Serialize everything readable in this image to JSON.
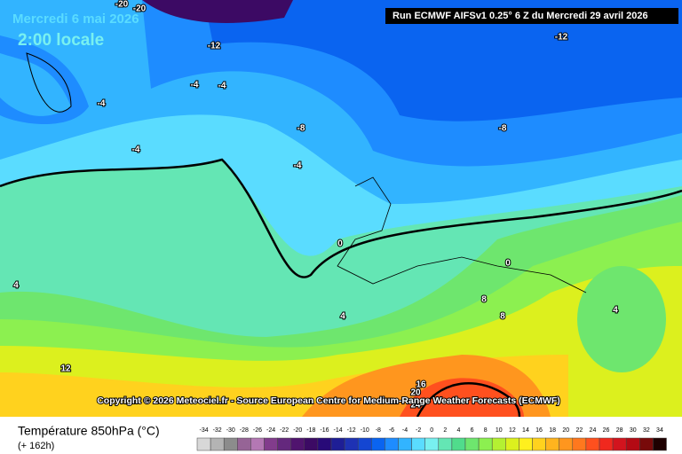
{
  "header": {
    "date": "Mercredi 6 mai 2026",
    "time": "2:00 locale",
    "run": "Run ECMWF AIFSv1 0.25° 6 Z du Mercredi 29 avril 2026"
  },
  "copyright": "Copyright © 2026 Meteociel.fr - Source European Centre for Medium-Range Weather Forecasts (ECMWF)",
  "legend": {
    "title": "Température 850hPa (°C)",
    "lead": "(+ 162h)",
    "ticks": [
      -34,
      -32,
      -30,
      -28,
      -26,
      -24,
      -22,
      -20,
      -18,
      -16,
      -14,
      -12,
      -10,
      -8,
      -6,
      -4,
      -2,
      0,
      2,
      4,
      6,
      8,
      10,
      12,
      14,
      16,
      18,
      20,
      22,
      24,
      26,
      28,
      30,
      32,
      34
    ],
    "colors": [
      "#d8d8d8",
      "#b4b4b4",
      "#8c8c8c",
      "#966496",
      "#b478b4",
      "#823c8c",
      "#64287d",
      "#50146e",
      "#3c0a64",
      "#280a78",
      "#1e1e96",
      "#1e32b4",
      "#1446d2",
      "#0a64f0",
      "#1e8cff",
      "#32b4ff",
      "#5adcff",
      "#78f0f0",
      "#64e6b4",
      "#50dc8c",
      "#6ee66e",
      "#8cf050",
      "#b4f032",
      "#dcf01e",
      "#fff01e",
      "#ffd21e",
      "#ffb41e",
      "#ff961e",
      "#ff781e",
      "#ff501e",
      "#f0281e",
      "#d2141e",
      "#b40a14",
      "#780a0a",
      "#1e0000"
    ]
  },
  "contour_labels": [
    -20,
    -20,
    -12,
    -12,
    -4,
    -4,
    -4,
    -4,
    -8,
    -8,
    -4,
    0,
    0,
    4,
    4,
    4,
    8,
    8,
    12,
    16,
    20,
    24
  ]
}
